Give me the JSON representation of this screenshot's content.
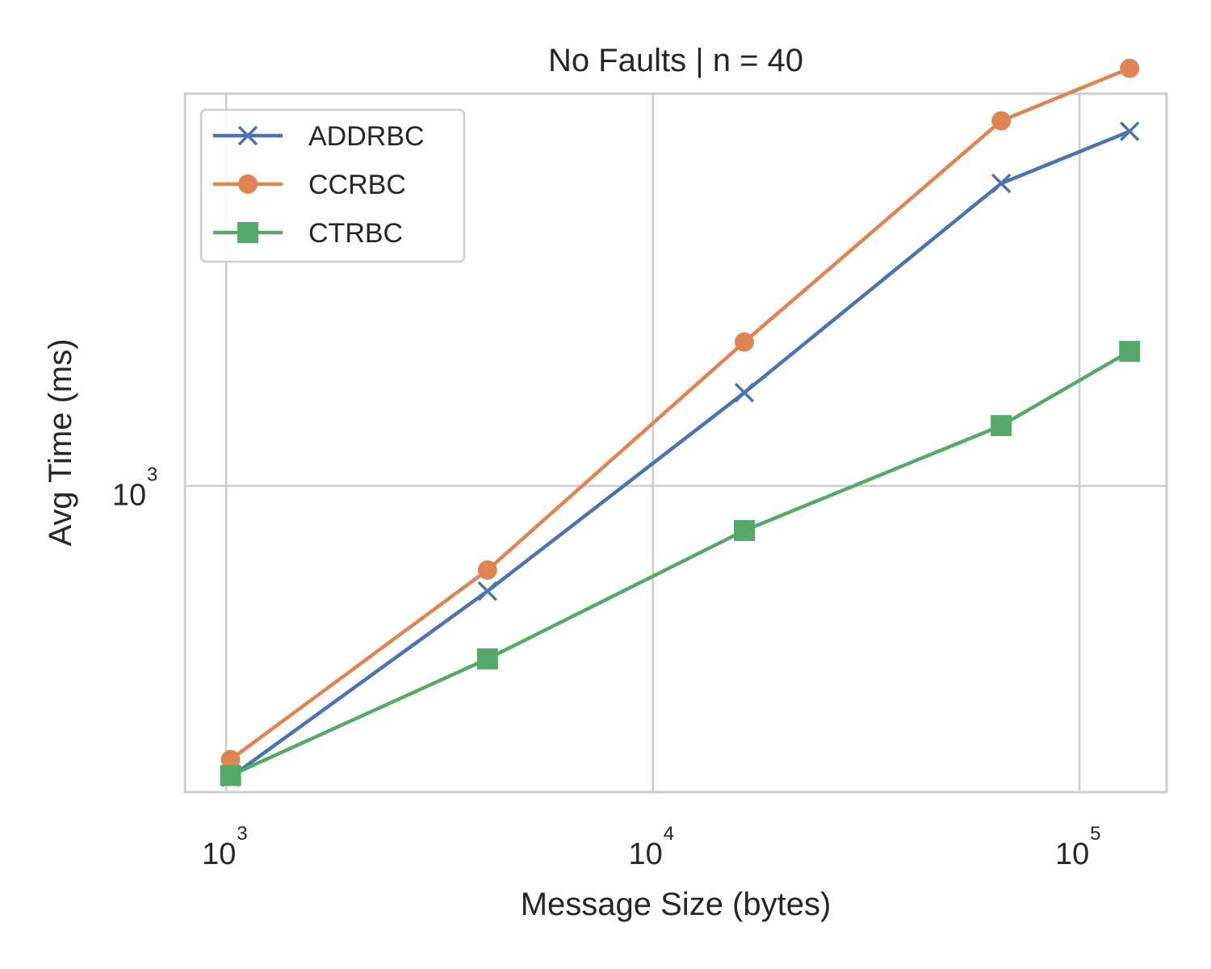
{
  "chart_data": {
    "type": "line",
    "title": "No Faults | n = 40",
    "xlabel": "Message Size (bytes)",
    "ylabel": "Avg Time (ms)",
    "xscale": "log",
    "yscale": "log",
    "xlim": [
      800,
      160000
    ],
    "ylim": [
      450,
      2780
    ],
    "x_ticks": [
      {
        "value": 1000,
        "base": "10",
        "exp": "3"
      },
      {
        "value": 10000,
        "base": "10",
        "exp": "4"
      },
      {
        "value": 100000,
        "base": "10",
        "exp": "5"
      }
    ],
    "y_ticks": [
      {
        "value": 1000,
        "base": "10",
        "exp": "3"
      }
    ],
    "grid": true,
    "legend": "top-left",
    "x": [
      1024,
      4096,
      16384,
      65536,
      131072
    ],
    "series": [
      {
        "name": "ADDRBC",
        "color": "#4c72b0",
        "marker": "x",
        "values": [
          468,
          760,
          1275,
          2200,
          2520
        ]
      },
      {
        "name": "CCRBC",
        "color": "#dd8452",
        "marker": "circle",
        "values": [
          490,
          803,
          1455,
          2590,
          2970
        ]
      },
      {
        "name": "CTRBC",
        "color": "#55a868",
        "marker": "square",
        "values": [
          470,
          637,
          890,
          1170,
          1420
        ]
      }
    ]
  }
}
